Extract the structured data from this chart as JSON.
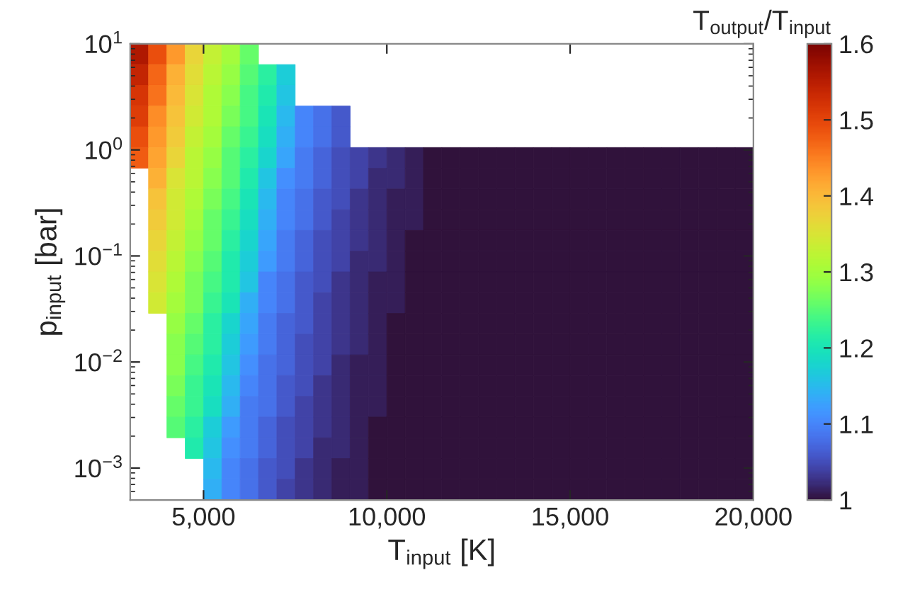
{
  "chart_data": {
    "type": "heatmap",
    "xlabel": "T$_{input}$ [K]",
    "ylabel": "p$_{input}$ [bar]",
    "clabel": "T$_{output}$/T$_{input}$",
    "x": [
      3250,
      3750,
      4250,
      4750,
      5250,
      5750,
      6250,
      6750,
      7250,
      7750,
      8250,
      8750,
      9250,
      9750,
      10250,
      10750,
      11250,
      11750,
      12250,
      12750,
      13250,
      13750,
      14250,
      14750,
      15250,
      15750,
      16250,
      16750,
      17250,
      17750,
      18250,
      18750,
      19250,
      19750
    ],
    "cells": [
      [
        1.56,
        1.49,
        1.43,
        1.37,
        1.33,
        1.3,
        1.26,
        null,
        null,
        null,
        null,
        null,
        null,
        null,
        null,
        null,
        null,
        null,
        null,
        null,
        null,
        null,
        null,
        null,
        null,
        null,
        null,
        null,
        null,
        null,
        null,
        null,
        null,
        null
      ],
      [
        1.54,
        1.47,
        1.41,
        1.36,
        1.32,
        1.29,
        1.25,
        1.22,
        1.17,
        null,
        null,
        null,
        null,
        null,
        null,
        null,
        null,
        null,
        null,
        null,
        null,
        null,
        null,
        null,
        null,
        null,
        null,
        null,
        null,
        null,
        null,
        null,
        null,
        null
      ],
      [
        1.52,
        1.46,
        1.4,
        1.35,
        1.31,
        1.28,
        1.24,
        1.21,
        1.16,
        null,
        null,
        null,
        null,
        null,
        null,
        null,
        null,
        null,
        null,
        null,
        null,
        null,
        null,
        null,
        null,
        null,
        null,
        null,
        null,
        null,
        null,
        null,
        null,
        null
      ],
      [
        1.51,
        1.44,
        1.39,
        1.34,
        1.31,
        1.27,
        1.24,
        1.2,
        1.15,
        1.1,
        1.08,
        1.06,
        null,
        null,
        null,
        null,
        null,
        null,
        null,
        null,
        null,
        null,
        null,
        null,
        null,
        null,
        null,
        null,
        null,
        null,
        null,
        null,
        null,
        null
      ],
      [
        1.49,
        1.43,
        1.38,
        1.33,
        1.3,
        1.26,
        1.23,
        1.19,
        1.14,
        1.1,
        1.08,
        1.06,
        null,
        null,
        null,
        null,
        null,
        null,
        null,
        null,
        null,
        null,
        null,
        null,
        null,
        null,
        null,
        null,
        null,
        null,
        null,
        null,
        null,
        null
      ],
      [
        1.48,
        1.42,
        1.37,
        1.32,
        1.29,
        1.25,
        1.22,
        1.18,
        1.13,
        1.09,
        1.07,
        1.05,
        1.04,
        1.03,
        1.02,
        1.01,
        1,
        1,
        1,
        1,
        1,
        1,
        1,
        1,
        1,
        1,
        1,
        1,
        1,
        1,
        1,
        1,
        1,
        1
      ],
      [
        null,
        1.41,
        1.35,
        1.32,
        1.28,
        1.25,
        1.21,
        1.16,
        1.11,
        1.09,
        1.07,
        1.05,
        1.04,
        1.02,
        1.02,
        1.01,
        1,
        1,
        1,
        1,
        1,
        1,
        1,
        1,
        1,
        1,
        1,
        1,
        1,
        1,
        1,
        1,
        1,
        1
      ],
      [
        null,
        1.39,
        1.34,
        1.31,
        1.27,
        1.24,
        1.2,
        1.15,
        1.1,
        1.08,
        1.06,
        1.05,
        1.03,
        1.02,
        1.01,
        1.01,
        1,
        1,
        1,
        1,
        1,
        1,
        1,
        1,
        1,
        1,
        1,
        1,
        1,
        1,
        1,
        1,
        1,
        1
      ],
      [
        null,
        1.38,
        1.34,
        1.3,
        1.26,
        1.23,
        1.19,
        1.14,
        1.1,
        1.08,
        1.06,
        1.04,
        1.03,
        1.02,
        1.01,
        1.01,
        1,
        1,
        1,
        1,
        1,
        1,
        1,
        1,
        1,
        1,
        1,
        1,
        1,
        1,
        1,
        1,
        1,
        1
      ],
      [
        null,
        1.37,
        1.33,
        1.29,
        1.26,
        1.22,
        1.18,
        1.13,
        1.09,
        1.07,
        1.05,
        1.04,
        1.03,
        1.02,
        1.01,
        1,
        1,
        1,
        1,
        1,
        1,
        1,
        1,
        1,
        1,
        1,
        1,
        1,
        1,
        1,
        1,
        1,
        1,
        1
      ],
      [
        null,
        1.36,
        1.32,
        1.28,
        1.25,
        1.21,
        1.17,
        1.12,
        1.09,
        1.07,
        1.05,
        1.04,
        1.02,
        1.02,
        1.01,
        1,
        1,
        1,
        1,
        1,
        1,
        1,
        1,
        1,
        1,
        1,
        1,
        1,
        1,
        1,
        1,
        1,
        1,
        1
      ],
      [
        null,
        1.35,
        1.31,
        1.27,
        1.24,
        1.21,
        1.16,
        1.1,
        1.08,
        1.06,
        1.05,
        1.03,
        1.02,
        1.01,
        1.01,
        1,
        1,
        1,
        1,
        1,
        1,
        1,
        1,
        1,
        1,
        1,
        1,
        1,
        1,
        1,
        1,
        1,
        1,
        1
      ],
      [
        null,
        1.34,
        1.3,
        1.27,
        1.23,
        1.2,
        1.14,
        1.1,
        1.08,
        1.06,
        1.04,
        1.03,
        1.02,
        1.01,
        1.01,
        1,
        1,
        1,
        1,
        1,
        1,
        1,
        1,
        1,
        1,
        1,
        1,
        1,
        1,
        1,
        1,
        1,
        1,
        1
      ],
      [
        null,
        null,
        1.29,
        1.26,
        1.22,
        1.18,
        1.13,
        1.09,
        1.07,
        1.06,
        1.04,
        1.03,
        1.02,
        1.01,
        1,
        1,
        1,
        1,
        1,
        1,
        1,
        1,
        1,
        1,
        1,
        1,
        1,
        1,
        1,
        1,
        1,
        1,
        1,
        1
      ],
      [
        null,
        null,
        1.28,
        1.25,
        1.22,
        1.17,
        1.12,
        1.09,
        1.07,
        1.05,
        1.04,
        1.03,
        1.02,
        1.01,
        1,
        1,
        1,
        1,
        1,
        1,
        1,
        1,
        1,
        1,
        1,
        1,
        1,
        1,
        1,
        1,
        1,
        1,
        1,
        1
      ],
      [
        null,
        null,
        1.28,
        1.24,
        1.21,
        1.16,
        1.11,
        1.08,
        1.07,
        1.05,
        1.04,
        1.02,
        1.01,
        1.01,
        1,
        1,
        1,
        1,
        1,
        1,
        1,
        1,
        1,
        1,
        1,
        1,
        1,
        1,
        1,
        1,
        1,
        1,
        1,
        1
      ],
      [
        null,
        null,
        1.27,
        1.23,
        1.2,
        1.15,
        1.1,
        1.08,
        1.06,
        1.05,
        1.03,
        1.02,
        1.01,
        1.01,
        1,
        1,
        1,
        1,
        1,
        1,
        1,
        1,
        1,
        1,
        1,
        1,
        1,
        1,
        1,
        1,
        1,
        1,
        1,
        1
      ],
      [
        null,
        null,
        1.26,
        1.23,
        1.19,
        1.14,
        1.09,
        1.08,
        1.06,
        1.04,
        1.03,
        1.02,
        1.01,
        1.01,
        1,
        1,
        1,
        1,
        1,
        1,
        1,
        1,
        1,
        1,
        1,
        1,
        1,
        1,
        1,
        1,
        1,
        1,
        1,
        1
      ],
      [
        null,
        null,
        1.25,
        1.22,
        1.17,
        1.12,
        1.09,
        1.07,
        1.05,
        1.04,
        1.03,
        1.02,
        1.01,
        1,
        1,
        1,
        1,
        1,
        1,
        1,
        1,
        1,
        1,
        1,
        1,
        1,
        1,
        1,
        1,
        1,
        1,
        1,
        1,
        1
      ],
      [
        null,
        null,
        null,
        1.21,
        1.16,
        1.11,
        1.09,
        1.07,
        1.05,
        1.04,
        1.02,
        1.02,
        1.01,
        1,
        1,
        1,
        1,
        1,
        1,
        1,
        1,
        1,
        1,
        1,
        1,
        1,
        1,
        1,
        1,
        1,
        1,
        1,
        1,
        1
      ],
      [
        null,
        null,
        null,
        null,
        1.15,
        1.1,
        1.08,
        1.06,
        1.05,
        1.03,
        1.02,
        1.01,
        1.01,
        1,
        1,
        1,
        1,
        1,
        1,
        1,
        1,
        1,
        1,
        1,
        1,
        1,
        1,
        1,
        1,
        1,
        1,
        1,
        1,
        1
      ],
      [
        null,
        null,
        null,
        null,
        1.14,
        1.1,
        1.08,
        1.06,
        1.04,
        1.03,
        1.02,
        1.01,
        1.01,
        1,
        1,
        1,
        1,
        1,
        1,
        1,
        1,
        1,
        1,
        1,
        1,
        1,
        1,
        1,
        1,
        1,
        1,
        1,
        1,
        1
      ]
    ],
    "xlim": [
      3000,
      20000
    ],
    "ylim": [
      0.0005,
      10
    ],
    "log": "y",
    "xticks": [
      {
        "value": 5000,
        "label": "5,000"
      },
      {
        "value": 10000,
        "label": "10,000"
      },
      {
        "value": 15000,
        "label": "15,000"
      },
      {
        "value": 20000,
        "label": "20,000"
      }
    ],
    "yticks": [
      {
        "value": 0.001,
        "label": "10$^{−3}$"
      },
      {
        "value": 0.01,
        "label": "10$^{−2}$"
      },
      {
        "value": 0.1,
        "label": "10$^{−1}$"
      },
      {
        "value": 1,
        "label": "10$^{0}$"
      },
      {
        "value": 10,
        "label": "10$^{1}$"
      }
    ],
    "clim": [
      1,
      1.6
    ],
    "cticks": [
      1,
      1.1,
      1.2,
      1.3,
      1.4,
      1.5,
      1.6
    ]
  }
}
